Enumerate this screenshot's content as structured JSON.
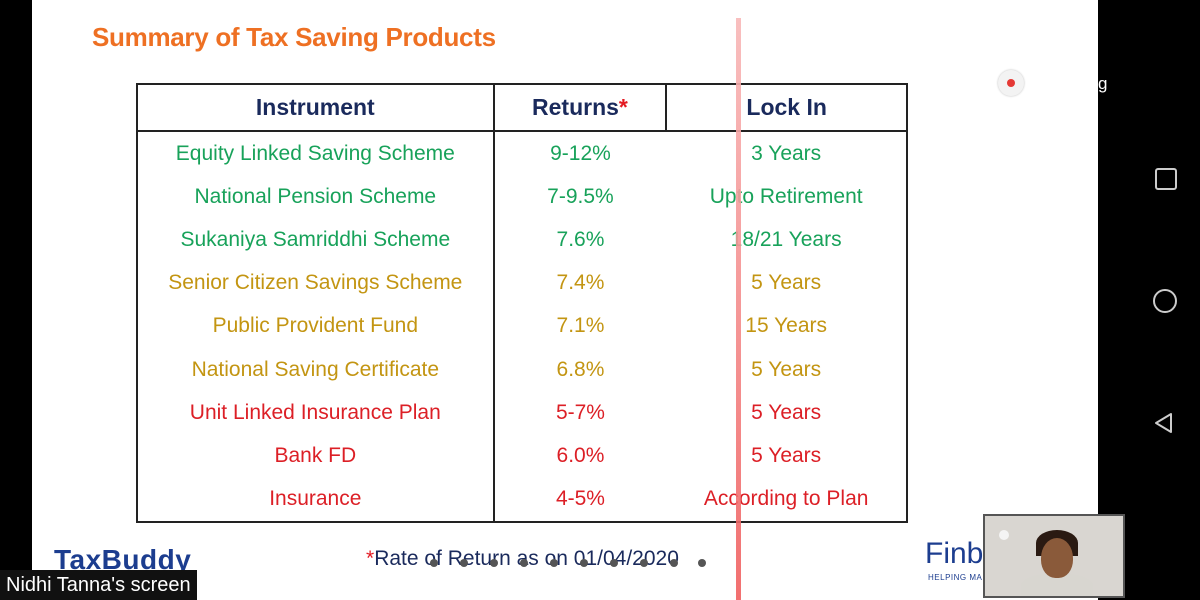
{
  "slide": {
    "title": "Summary of Tax Saving Products",
    "table": {
      "headers": {
        "instrument": "Instrument",
        "returns": "Returns",
        "returns_star": "*",
        "lock_in": "Lock In"
      },
      "rows": [
        {
          "instrument": "Equity Linked Saving Scheme",
          "returns": "9-12%",
          "lock_in": "3 Years",
          "color": "#18a25a"
        },
        {
          "instrument": "National Pension Scheme",
          "returns": "7-9.5%",
          "lock_in": "Upto Retirement",
          "color": "#18a25a"
        },
        {
          "instrument": "Sukaniya Samriddhi Scheme",
          "returns": "7.6%",
          "lock_in": "18/21 Years",
          "color": "#18a25a"
        },
        {
          "instrument": "Senior Citizen Savings Scheme",
          "returns": "7.4%",
          "lock_in": "5 Years",
          "color": "#c39512"
        },
        {
          "instrument": "Public Provident Fund",
          "returns": "7.1%",
          "lock_in": "15 Years",
          "color": "#c39512"
        },
        {
          "instrument": "National Saving Certificate",
          "returns": "6.8%",
          "lock_in": "5 Years",
          "color": "#c39512"
        },
        {
          "instrument": "Unit Linked Insurance Plan",
          "returns": "5-7%",
          "lock_in": "5 Years",
          "color": "#dc1f26"
        },
        {
          "instrument": "Bank FD",
          "returns": "6.0%",
          "lock_in": "5 Years",
          "color": "#dc1f26"
        },
        {
          "instrument": "Insurance",
          "returns": "4-5%",
          "lock_in": "According to Plan",
          "color": "#dc1f26"
        }
      ]
    },
    "footnote_star": "*",
    "footnote_text": "Rate of Return as on 01/04/2020",
    "logo_left": "TaxBuddy",
    "logo_right": "Finb",
    "logo_right_tagline": "HELPING MAN"
  },
  "recording": {
    "indicator_color": "#e53935",
    "label_fragment": "g"
  },
  "screen_share_label": "Nidhi Tanna's screen",
  "nav_icons": [
    "recents-square-icon",
    "home-circle-icon",
    "back-triangle-icon"
  ],
  "colors": {
    "title": "#ee7023",
    "header": "#1a2a5c",
    "brand": "#1c3d8f",
    "laser": "#f06060"
  }
}
